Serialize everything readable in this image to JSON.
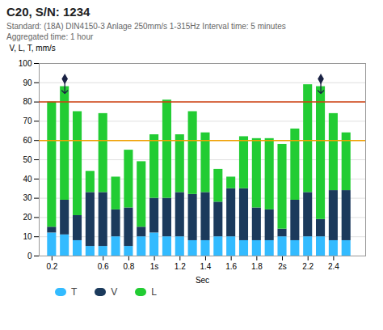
{
  "chart_data": {
    "type": "bar",
    "stacked": true,
    "title": "C20, S/N: 1234",
    "subtitle": [
      "Standard: (18A) DIN4150-3 Anlage 250mm/s 1-315Hz Interval time: 5 minutes",
      "Aggregated time: 1 hour"
    ],
    "x_label": "Sec",
    "y_label": "V, L, T, mm/s",
    "x": [
      0.2,
      0.3,
      0.4,
      0.5,
      0.6,
      0.7,
      0.8,
      0.9,
      1.0,
      1.1,
      1.2,
      1.3,
      1.4,
      1.5,
      1.6,
      1.7,
      1.8,
      1.9,
      2.0,
      2.1,
      2.2,
      2.3,
      2.4,
      2.5
    ],
    "series": [
      {
        "name": "T",
        "color": "#33bbff",
        "values": [
          12,
          11,
          8,
          5,
          5,
          10,
          5,
          10,
          12,
          10,
          10,
          8,
          8,
          10,
          10,
          8,
          8,
          8,
          10,
          8,
          10,
          10,
          8,
          8
        ]
      },
      {
        "name": "V",
        "color": "#1b3a5c",
        "values": [
          3,
          18,
          13,
          28,
          28,
          14,
          20,
          5,
          18,
          20,
          23,
          24,
          25,
          18,
          25,
          27,
          17,
          16,
          4,
          21,
          23,
          9,
          26,
          26
        ]
      },
      {
        "name": "L",
        "color": "#22cc33",
        "values": [
          65,
          59,
          54,
          11,
          41,
          17,
          30,
          34,
          33,
          51,
          30,
          43,
          31,
          17,
          6,
          27,
          36,
          37,
          44,
          37,
          56,
          69,
          40,
          30
        ]
      }
    ],
    "reference_lines": [
      {
        "value": 80,
        "color": "#d04010"
      },
      {
        "value": 60,
        "color": "#f0a000"
      }
    ],
    "markers": [
      {
        "x": 0.3,
        "y": 92,
        "color": "#1a2244"
      },
      {
        "x": 2.3,
        "y": 92,
        "color": "#1a2244"
      }
    ],
    "xlim": [
      0.1,
      2.65
    ],
    "xticks": [
      0.2,
      0.6,
      0.8,
      {
        "value": 1.0,
        "label": "1s"
      },
      1.2,
      1.4,
      1.6,
      1.8,
      {
        "value": 2.0,
        "label": "2s"
      },
      2.2,
      2.4
    ],
    "ylim": [
      0,
      100
    ],
    "yticks": [
      0,
      10,
      20,
      30,
      40,
      50,
      60,
      70,
      80,
      90,
      100
    ],
    "grid": true,
    "legend": "bottom"
  }
}
